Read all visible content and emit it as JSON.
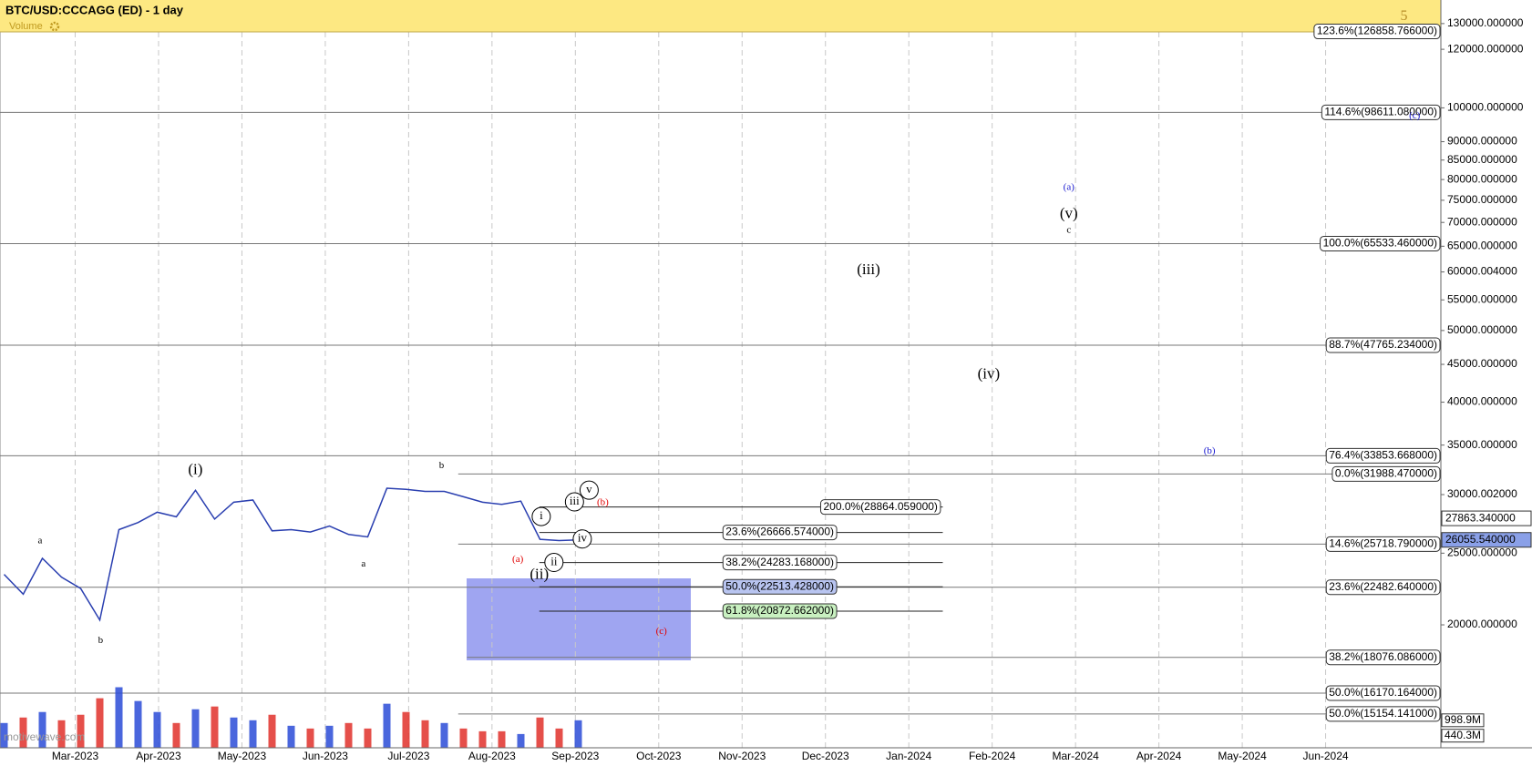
{
  "header": {
    "indicator": "Volume"
  },
  "watermark": "motivewave.com",
  "chart_data": {
    "type": "line",
    "title": "BTC/USD:CCCAGG (ED) - 1 day",
    "log_scale": true,
    "grid": true,
    "color": "#2a3fb0",
    "x_axis_labels": [
      "Mar-2023",
      "Apr-2023",
      "May-2023",
      "Jun-2023",
      "Jul-2023",
      "Aug-2023",
      "Sep-2023",
      "Oct-2023",
      "Nov-2023",
      "Dec-2023",
      "Jan-2024",
      "Feb-2024",
      "Mar-2024",
      "Apr-2024",
      "May-2024",
      "Jun-2024"
    ],
    "values": [
      23400,
      22000,
      24600,
      23200,
      22400,
      20300,
      26900,
      27500,
      28400,
      28000,
      30400,
      27800,
      29300,
      29500,
      26800,
      26900,
      26700,
      27200,
      26500,
      26300,
      30600,
      30500,
      30300,
      30300,
      29800,
      29300,
      29100,
      29400,
      26100,
      26000,
      26055.54
    ],
    "ylim": [
      13640,
      139900
    ],
    "yticks": [
      {
        "value": 130000,
        "label": "130000.000000"
      },
      {
        "value": 120000,
        "label": "120000.000000"
      },
      {
        "value": 100000,
        "label": "100000.000000"
      },
      {
        "value": 90000,
        "label": "90000.000000"
      },
      {
        "value": 85000,
        "label": "85000.000000"
      },
      {
        "value": 80000,
        "label": "80000.000000"
      },
      {
        "value": 75000,
        "label": "75000.000000"
      },
      {
        "value": 70000,
        "label": "70000.000000"
      },
      {
        "value": 65000,
        "label": "65000.000000"
      },
      {
        "value": 60000.004,
        "label": "60000.004000"
      },
      {
        "value": 55000,
        "label": "55000.000000"
      },
      {
        "value": 50000,
        "label": "50000.000000"
      },
      {
        "value": 45000,
        "label": "45000.000000"
      },
      {
        "value": 40000,
        "label": "40000.000000"
      },
      {
        "value": 35000,
        "label": "35000.000000"
      },
      {
        "value": 30000.002,
        "label": "30000.002000"
      },
      {
        "value": 25000,
        "label": "25000.000000"
      },
      {
        "value": 20000,
        "label": "20000.000000"
      }
    ],
    "price_tags": [
      {
        "value": 27863.34,
        "label": "27863.340000"
      },
      {
        "value": 26055.54,
        "label": "26055.540000"
      }
    ],
    "volume": {
      "values": [
        900,
        1100,
        1300,
        1000,
        1200,
        1800,
        2200,
        1700,
        1300,
        900,
        1400,
        1500,
        1100,
        1000,
        1200,
        800,
        700,
        800,
        900,
        700,
        1600,
        1300,
        1000,
        900,
        700,
        600,
        600,
        500,
        1100,
        700,
        998.9
      ],
      "ylim": [
        0,
        3640
      ],
      "yticks": [
        {
          "value": 998.9,
          "label": "998.9M"
        },
        {
          "value": 440.3,
          "label": "440.3M"
        }
      ],
      "up_color": "#2a4bd7",
      "down_color": "#e0302a"
    },
    "fib_levels": [
      {
        "value": 126858.766,
        "label": "123.6%(126858.766000)"
      },
      {
        "value": 98611.08,
        "label": "114.6%(98611.080000)"
      },
      {
        "value": 65533.46,
        "label": "100.0%(65533.460000)"
      },
      {
        "value": 47765.234,
        "label": "88.7%(47765.234000)"
      },
      {
        "value": 33853.668,
        "label": "76.4%(33853.668000)"
      },
      {
        "value": 31988.47,
        "label": "0.0%(31988.470000)"
      },
      {
        "value": 25718.79,
        "label": "14.6%(25718.790000)"
      },
      {
        "value": 22482.64,
        "label": "23.6%(22482.640000)"
      },
      {
        "value": 18076.086,
        "label": "38.2%(18076.086000)"
      },
      {
        "value": 16170.164,
        "label": "50.0%(16170.164000)"
      },
      {
        "value": 15154.141,
        "label": "50.0%(15154.141000)"
      }
    ],
    "fib_levels_2": [
      {
        "value": 28864.059,
        "label": "200.0%(28864.059000)",
        "color": "#ffffff"
      },
      {
        "value": 26666.574,
        "label": "23.6%(26666.574000)",
        "color": "#ffffff"
      },
      {
        "value": 24283.168,
        "label": "38.2%(24283.168000)",
        "color": "#ffffff"
      },
      {
        "value": 22513.428,
        "label": "50.0%(22513.428000)",
        "color": "#b8c4f0"
      },
      {
        "value": 20872.662,
        "label": "61.8%(20872.662000)",
        "color": "#c8f0c0"
      }
    ],
    "wave_labels": [
      {
        "text": "(i)",
        "color": "#000000"
      },
      {
        "text": "(ii)",
        "color": "#000000"
      },
      {
        "text": "(iii)",
        "color": "#000000"
      },
      {
        "text": "(iv)",
        "color": "#000000"
      },
      {
        "text": "(v)",
        "color": "#000000"
      },
      {
        "text": "a",
        "color": "#000000"
      },
      {
        "text": "b",
        "color": "#000000"
      },
      {
        "text": "a",
        "color": "#000000"
      },
      {
        "text": "b",
        "color": "#000000"
      },
      {
        "text": "c",
        "color": "#000000"
      },
      {
        "text": "i",
        "color": "#000000"
      },
      {
        "text": "ii",
        "color": "#000000"
      },
      {
        "text": "iii",
        "color": "#000000"
      },
      {
        "text": "iv",
        "color": "#000000"
      },
      {
        "text": "v",
        "color": "#000000"
      },
      {
        "text": "(a)",
        "color": "#e00000"
      },
      {
        "text": "(b)",
        "color": "#e00000"
      },
      {
        "text": "(c)",
        "color": "#e00000"
      },
      {
        "text": "(a)",
        "color": "#1a1ad0"
      },
      {
        "text": "(b)",
        "color": "#1a1ad0"
      },
      {
        "text": "(c)",
        "color": "#1a1ad0"
      },
      {
        "text": "5",
        "color": "#b8902a"
      }
    ]
  }
}
